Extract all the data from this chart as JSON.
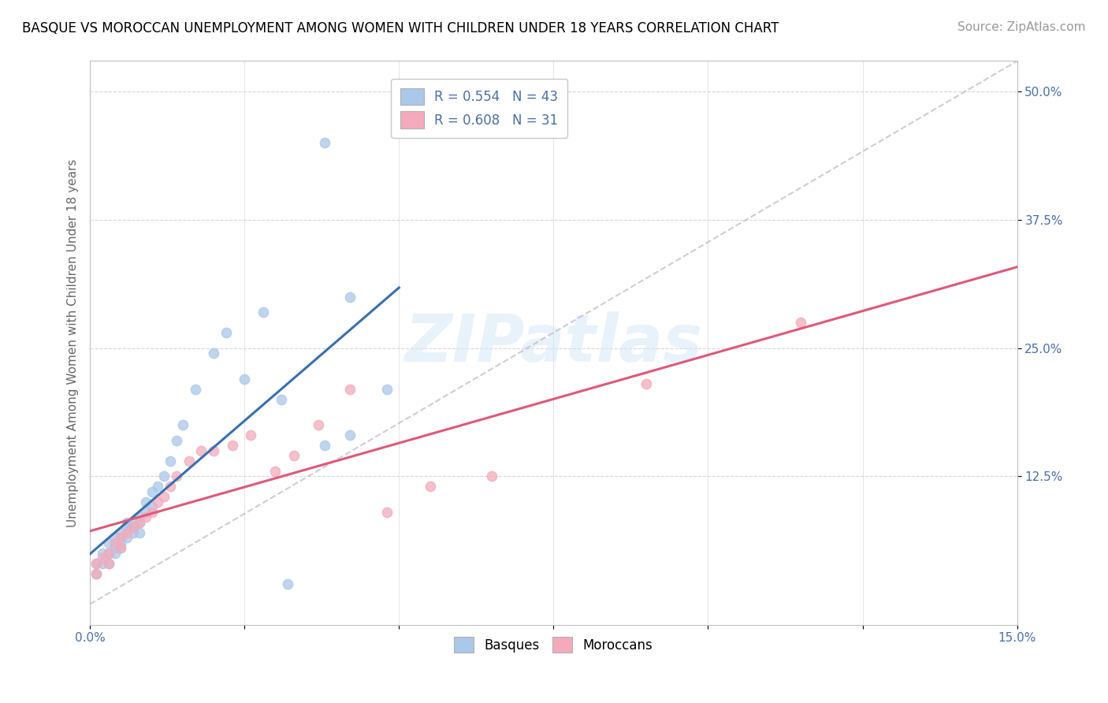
{
  "title": "BASQUE VS MOROCCAN UNEMPLOYMENT AMONG WOMEN WITH CHILDREN UNDER 18 YEARS CORRELATION CHART",
  "source": "Source: ZipAtlas.com",
  "ylabel": "Unemployment Among Women with Children Under 18 years",
  "xlim": [
    0.0,
    0.15
  ],
  "ylim": [
    -0.02,
    0.53
  ],
  "y_tick_vals_right": [
    0.125,
    0.25,
    0.375,
    0.5
  ],
  "y_tick_labels_right": [
    "12.5%",
    "25.0%",
    "37.5%",
    "50.0%"
  ],
  "basque_R": 0.554,
  "basque_N": 43,
  "moroccan_R": 0.608,
  "moroccan_N": 31,
  "basque_color": "#aac8e8",
  "moroccan_color": "#f4aabb",
  "basque_line_color": "#3a6faf",
  "moroccan_line_color": "#e05878",
  "ref_line_color": "#b8b8c8",
  "background_color": "#ffffff",
  "watermark": "ZIPatlas",
  "basque_x": [
    0.001,
    0.001,
    0.002,
    0.002,
    0.003,
    0.003,
    0.003,
    0.004,
    0.004,
    0.004,
    0.005,
    0.005,
    0.005,
    0.006,
    0.006,
    0.006,
    0.007,
    0.007,
    0.007,
    0.008,
    0.008,
    0.008,
    0.009,
    0.009,
    0.01,
    0.01,
    0.011,
    0.012,
    0.013,
    0.014,
    0.015,
    0.017,
    0.02,
    0.022,
    0.025,
    0.028,
    0.031,
    0.038,
    0.042,
    0.048,
    0.038,
    0.042,
    0.032
  ],
  "basque_y": [
    0.03,
    0.04,
    0.04,
    0.05,
    0.04,
    0.05,
    0.06,
    0.05,
    0.055,
    0.065,
    0.06,
    0.07,
    0.055,
    0.065,
    0.075,
    0.08,
    0.07,
    0.075,
    0.08,
    0.07,
    0.08,
    0.085,
    0.09,
    0.1,
    0.095,
    0.11,
    0.115,
    0.125,
    0.14,
    0.16,
    0.175,
    0.21,
    0.245,
    0.265,
    0.22,
    0.285,
    0.2,
    0.45,
    0.3,
    0.21,
    0.155,
    0.165,
    0.02
  ],
  "moroccan_x": [
    0.001,
    0.001,
    0.002,
    0.003,
    0.003,
    0.004,
    0.005,
    0.005,
    0.006,
    0.007,
    0.008,
    0.009,
    0.01,
    0.011,
    0.012,
    0.013,
    0.014,
    0.016,
    0.018,
    0.02,
    0.023,
    0.026,
    0.03,
    0.033,
    0.037,
    0.042,
    0.048,
    0.055,
    0.065,
    0.09,
    0.115
  ],
  "moroccan_y": [
    0.03,
    0.04,
    0.045,
    0.04,
    0.05,
    0.06,
    0.055,
    0.065,
    0.07,
    0.075,
    0.08,
    0.085,
    0.09,
    0.1,
    0.105,
    0.115,
    0.125,
    0.14,
    0.15,
    0.15,
    0.155,
    0.165,
    0.13,
    0.145,
    0.175,
    0.21,
    0.09,
    0.115,
    0.125,
    0.215,
    0.275
  ],
  "title_fontsize": 12,
  "source_fontsize": 11,
  "axis_label_fontsize": 11,
  "tick_fontsize": 11,
  "legend_fontsize": 12
}
